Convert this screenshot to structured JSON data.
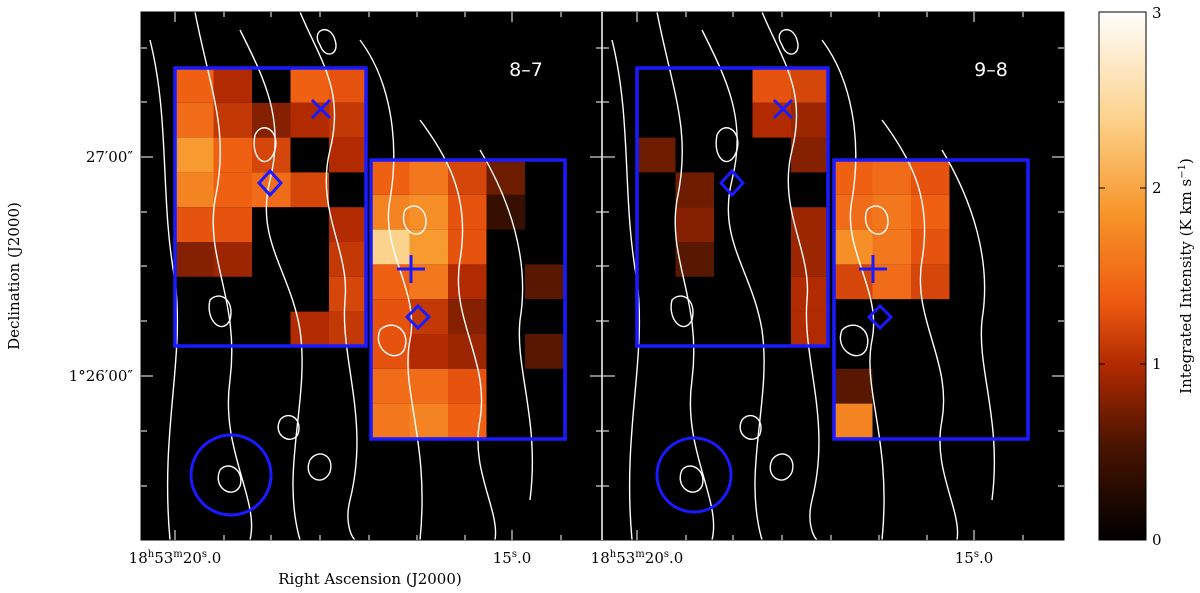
{
  "chart_data": {
    "type": "heatmap",
    "panels": [
      {
        "label": "8–7",
        "cells": [
          [
            0,
            0,
            1.4
          ],
          [
            0,
            1,
            1.0
          ],
          [
            0,
            3,
            1.4
          ],
          [
            0,
            4,
            1.3
          ],
          [
            1,
            0,
            1.5
          ],
          [
            1,
            1,
            1.1
          ],
          [
            1,
            2,
            0.8
          ],
          [
            1,
            3,
            1.0
          ],
          [
            1,
            4,
            1.1
          ],
          [
            2,
            0,
            1.9
          ],
          [
            2,
            1,
            1.4
          ],
          [
            2,
            2,
            1.2
          ],
          [
            2,
            4,
            1.0
          ],
          [
            3,
            0,
            1.7
          ],
          [
            3,
            1,
            1.4
          ],
          [
            3,
            2,
            1.5
          ],
          [
            3,
            3,
            1.2
          ],
          [
            4,
            0,
            1.3
          ],
          [
            4,
            1,
            1.3
          ],
          [
            4,
            4,
            1.0
          ],
          [
            5,
            0,
            0.8
          ],
          [
            5,
            1,
            0.9
          ],
          [
            5,
            4,
            1.1
          ],
          [
            6,
            4,
            1.2
          ],
          [
            7,
            3,
            1.0
          ],
          [
            7,
            4,
            1.1
          ],
          [
            8,
            0,
            1.4
          ],
          [
            8,
            1,
            1.6
          ],
          [
            8,
            2,
            1.2
          ],
          [
            8,
            3,
            0.7
          ],
          [
            9,
            0,
            1.7
          ],
          [
            9,
            1,
            1.8
          ],
          [
            9,
            2,
            1.3
          ],
          [
            9,
            3,
            0.4
          ],
          [
            10,
            0,
            2.4
          ],
          [
            10,
            1,
            1.9
          ],
          [
            10,
            2,
            1.3
          ],
          [
            11,
            0,
            1.4
          ],
          [
            11,
            1,
            1.6
          ],
          [
            11,
            2,
            1.0
          ],
          [
            11,
            4,
            0.6
          ],
          [
            12,
            0,
            1.3
          ],
          [
            12,
            1,
            1.1
          ],
          [
            12,
            2,
            0.8
          ],
          [
            13,
            0,
            1.3
          ],
          [
            13,
            1,
            1.0
          ],
          [
            13,
            2,
            0.9
          ],
          [
            13,
            4,
            0.6
          ],
          [
            14,
            0,
            1.5
          ],
          [
            14,
            1,
            1.5
          ],
          [
            14,
            2,
            1.3
          ],
          [
            15,
            0,
            1.6
          ],
          [
            15,
            1,
            1.7
          ],
          [
            15,
            2,
            1.4
          ]
        ],
        "markers": {
          "x_cross": "north-east source",
          "plus": "central source",
          "diamonds": 2
        }
      },
      {
        "label": "9–8",
        "cells": [
          [
            0,
            3,
            1.3
          ],
          [
            0,
            4,
            1.2
          ],
          [
            1,
            3,
            1.0
          ],
          [
            1,
            4,
            0.9
          ],
          [
            2,
            0,
            0.7
          ],
          [
            2,
            4,
            0.8
          ],
          [
            3,
            1,
            0.7
          ],
          [
            4,
            1,
            0.8
          ],
          [
            4,
            4,
            0.9
          ],
          [
            5,
            1,
            0.6
          ],
          [
            5,
            4,
            0.9
          ],
          [
            6,
            4,
            1.0
          ],
          [
            7,
            4,
            1.0
          ],
          [
            8,
            0,
            1.4
          ],
          [
            8,
            1,
            1.5
          ],
          [
            8,
            2,
            1.3
          ],
          [
            9,
            0,
            1.5
          ],
          [
            9,
            1,
            1.6
          ],
          [
            9,
            2,
            1.4
          ],
          [
            10,
            0,
            1.8
          ],
          [
            10,
            1,
            1.6
          ],
          [
            10,
            2,
            1.3
          ],
          [
            11,
            0,
            1.2
          ],
          [
            11,
            1,
            1.5
          ],
          [
            11,
            2,
            1.2
          ],
          [
            14,
            0,
            0.6
          ],
          [
            15,
            0,
            1.7
          ]
        ]
      }
    ],
    "colorbar": {
      "label": "Integrated Intensity (K km s⁻¹)",
      "min": 0,
      "max": 3,
      "ticks": [
        "0",
        "1",
        "2",
        "3"
      ]
    },
    "xlabel": "Right Ascension (J2000)",
    "ylabel": "Declination (J2000)",
    "x_ticks": [
      "18h53m20.0s",
      "15.0s"
    ],
    "y_ticks": [
      "27′00″",
      "1°26′00″"
    ],
    "colors": {
      "region_box": "#1a1aff",
      "contours": "#ffffff",
      "background": "#000000"
    }
  },
  "labels": {
    "xlabel": "Right Ascension (J2000)",
    "ylabel": "Declination (J2000)",
    "panel1": "8–7",
    "panel2": "9–8",
    "cb_label": "Integrated Intensity (K km s",
    "cb_sup": "−1",
    "cb_close": ")",
    "ytick1": "27′00″",
    "ytick2": "1°26′00″",
    "xtick1_main": "18",
    "xtick1_h": "h",
    "xtick1_m_val": "53",
    "xtick1_m": "m",
    "xtick1_s_val": "20",
    "xtick1_s": "s",
    "xtick1_frac": ".0",
    "xtick2_val": "15",
    "xtick2_s": "s",
    "xtick2_frac": ".0",
    "cb0": "0",
    "cb1": "1",
    "cb2": "2",
    "cb3": "3"
  }
}
